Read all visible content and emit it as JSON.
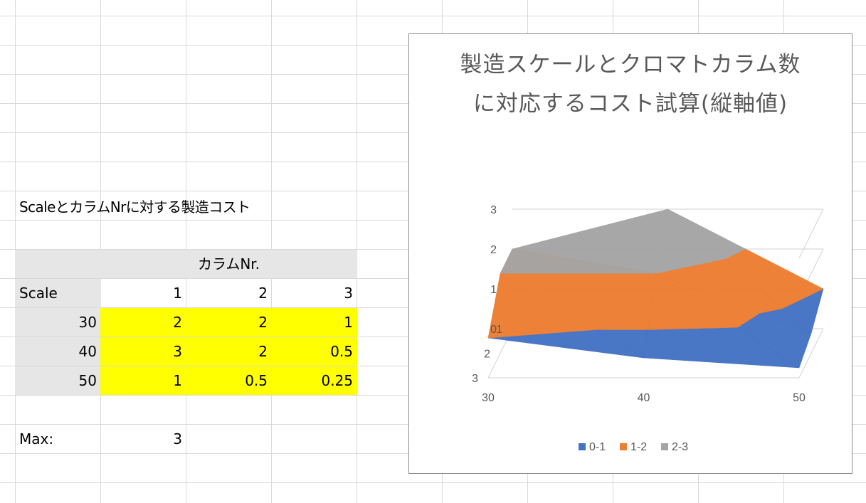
{
  "sheet": {
    "caption": "ScaleとカラムNrに対する製造コスト",
    "column_header": "カラムNr.",
    "row_header": "Scale",
    "columns": [
      "1",
      "2",
      "3"
    ],
    "rows": [
      {
        "scale": "30",
        "values": [
          "2",
          "2",
          "1"
        ]
      },
      {
        "scale": "40",
        "values": [
          "3",
          "2",
          "0.5"
        ]
      },
      {
        "scale": "50",
        "values": [
          "1",
          "0.5",
          "0.25"
        ]
      }
    ],
    "max_label": "Max:",
    "max_value": "3"
  },
  "colors": {
    "highlight": "#ffff00",
    "header_gray": "#e6e6e6",
    "band_0_1": "#4472c4",
    "band_1_2": "#ed7d31",
    "band_2_3": "#a5a5a5"
  },
  "chart_data": {
    "type": "surface",
    "title_line1": "製造スケールとクロマトカラム数",
    "title_line2": "に対応するコスト試算(縦軸値)",
    "categories": [
      "30",
      "40",
      "50"
    ],
    "series_labels": [
      "1",
      "2",
      "3"
    ],
    "z_ticks": [
      "0",
      "1",
      "2",
      "3"
    ],
    "zlim": [
      0,
      3
    ],
    "grid": true,
    "legend": "bottom",
    "legend_entries": [
      "0-1",
      "1-2",
      "2-3"
    ],
    "values": [
      [
        2,
        2,
        1
      ],
      [
        3,
        2,
        0.5
      ],
      [
        1,
        0.5,
        0.25
      ]
    ]
  }
}
